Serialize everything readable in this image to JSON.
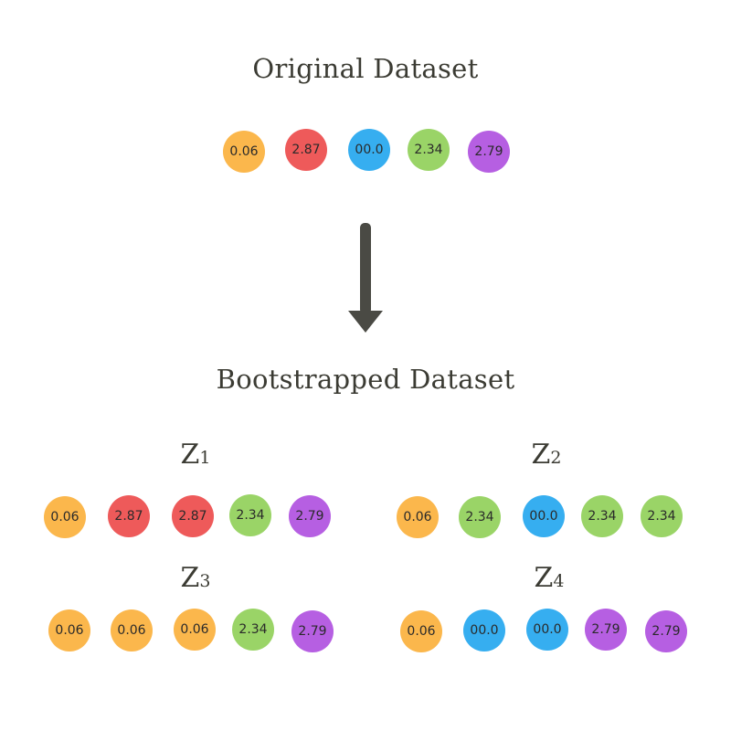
{
  "original": {
    "title": "Original Dataset",
    "values": [
      "0.06",
      "2.87",
      "00.0",
      "2.34",
      "2.79"
    ]
  },
  "bootstrapped": {
    "title": "Bootstrapped Dataset",
    "z1": {
      "label": "Z",
      "sub": "1",
      "values": [
        "0.06",
        "2.87",
        "2.87",
        "2.34",
        "2.79"
      ]
    },
    "z2": {
      "label": "Z",
      "sub": "2",
      "values": [
        "0.06",
        "2.34",
        "00.0",
        "2.34",
        "2.34"
      ]
    },
    "z3": {
      "label": "Z",
      "sub": "3",
      "values": [
        "0.06",
        "0.06",
        "0.06",
        "2.34",
        "2.79"
      ]
    },
    "z4": {
      "label": "Z",
      "sub": "4",
      "values": [
        "0.06",
        "00.0",
        "00.0",
        "2.79",
        "2.79"
      ]
    }
  },
  "colors": {
    "orange": "#fbb74c",
    "red": "#ee5a5a",
    "blue": "#36aef0",
    "green": "#9ad467",
    "purple": "#b65fe2",
    "arrow": "#4a4a44"
  }
}
